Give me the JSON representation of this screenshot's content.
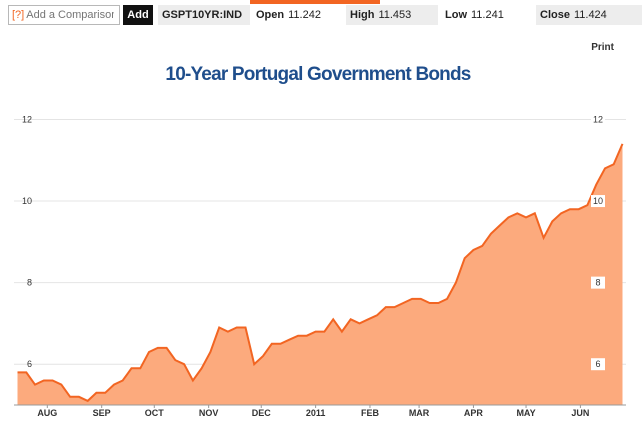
{
  "toolbar": {
    "help_label": "[?]",
    "compare_placeholder": "Add a Comparison",
    "add_label": "Add",
    "ticker": "GSPT10YR:IND",
    "open_label": "Open",
    "open_value": "11.242",
    "high_label": "High",
    "high_value": "11.453",
    "low_label": "Low",
    "low_value": "11.241",
    "close_label": "Close",
    "close_value": "11.424"
  },
  "print_label": "Print",
  "colors": {
    "line": "#f26522",
    "fill": "#fcaa7d",
    "title": "#1f4e8c",
    "accent": "#f26522"
  },
  "chart_data": {
    "type": "area",
    "title": "10-Year Portugal Government Bonds",
    "xlabel": "",
    "ylabel": "",
    "ylim": [
      5.0,
      12.6
    ],
    "y_ticks": [
      6,
      8,
      10,
      12
    ],
    "grid": true,
    "x_tick_labels": [
      "AUG",
      "SEP",
      "OCT",
      "NOV",
      "DEC",
      "2011",
      "FEB",
      "MAR",
      "APR",
      "MAY",
      "JUN"
    ],
    "x": [
      "2010-07-15",
      "2010-07-20",
      "2010-07-25",
      "2010-07-30",
      "2010-08-04",
      "2010-08-09",
      "2010-08-14",
      "2010-08-19",
      "2010-08-24",
      "2010-08-29",
      "2010-09-03",
      "2010-09-08",
      "2010-09-13",
      "2010-09-18",
      "2010-09-23",
      "2010-09-28",
      "2010-10-03",
      "2010-10-08",
      "2010-10-13",
      "2010-10-18",
      "2010-10-23",
      "2010-10-28",
      "2010-11-02",
      "2010-11-07",
      "2010-11-12",
      "2010-11-17",
      "2010-11-22",
      "2010-11-27",
      "2010-12-02",
      "2010-12-07",
      "2010-12-12",
      "2010-12-17",
      "2010-12-22",
      "2010-12-27",
      "2011-01-01",
      "2011-01-06",
      "2011-01-11",
      "2011-01-16",
      "2011-01-21",
      "2011-01-26",
      "2011-01-31",
      "2011-02-05",
      "2011-02-10",
      "2011-02-15",
      "2011-02-20",
      "2011-02-25",
      "2011-03-02",
      "2011-03-07",
      "2011-03-12",
      "2011-03-17",
      "2011-03-22",
      "2011-03-27",
      "2011-04-01",
      "2011-04-06",
      "2011-04-11",
      "2011-04-16",
      "2011-04-21",
      "2011-04-26",
      "2011-05-01",
      "2011-05-06",
      "2011-05-11",
      "2011-05-16",
      "2011-05-21",
      "2011-05-26",
      "2011-05-31",
      "2011-06-05",
      "2011-06-10",
      "2011-06-15",
      "2011-06-20",
      "2011-06-25"
    ],
    "series": [
      {
        "values": [
          5.8,
          5.8,
          5.5,
          5.6,
          5.6,
          5.5,
          5.2,
          5.2,
          5.1,
          5.3,
          5.3,
          5.5,
          5.6,
          5.9,
          5.9,
          6.3,
          6.4,
          6.4,
          6.1,
          6.0,
          5.6,
          5.9,
          6.3,
          6.9,
          6.8,
          6.9,
          6.9,
          6.0,
          6.2,
          6.5,
          6.5,
          6.6,
          6.7,
          6.7,
          6.8,
          6.8,
          7.1,
          6.8,
          7.1,
          7.0,
          7.1,
          7.2,
          7.4,
          7.4,
          7.5,
          7.6,
          7.6,
          7.5,
          7.5,
          7.6,
          8.0,
          8.6,
          8.8,
          8.9,
          9.2,
          9.4,
          9.6,
          9.7,
          9.6,
          9.7,
          9.1,
          9.5,
          9.7,
          9.8,
          9.8,
          9.9,
          10.4,
          10.8,
          10.9,
          11.4
        ]
      }
    ]
  }
}
